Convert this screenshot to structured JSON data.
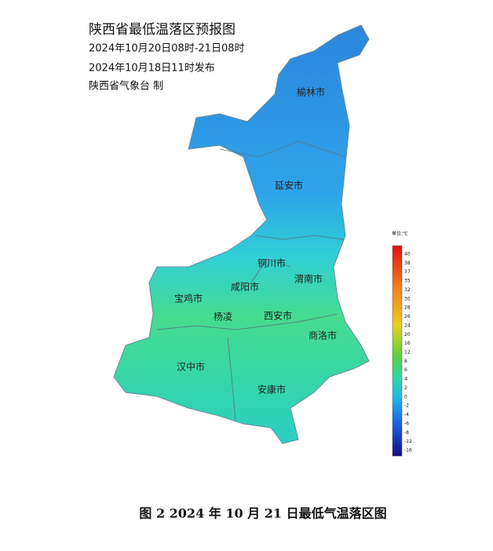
{
  "header": {
    "title": "陕西省最低温落区预报图",
    "valid": "2024年10月20日08时-21日08时",
    "issued": "2024年10月18日11时发布",
    "producer": "陕西省气象台 制"
  },
  "cities": [
    "榆林市",
    "延安市",
    "铜川市",
    "渭南市",
    "咸阳市",
    "宝鸡市",
    "杨凌",
    "西安市",
    "商洛市",
    "汉中市",
    "安康市"
  ],
  "legend": {
    "unit": "单位:℃",
    "ticks": [
      40,
      38,
      37,
      35,
      32,
      30,
      28,
      26,
      24,
      20,
      16,
      12,
      8,
      6,
      4,
      2,
      0,
      -2,
      -4,
      -6,
      -8,
      -12,
      -16
    ]
  },
  "caption": "图 2 2024 年 10 月 21 日最低气温落区图"
}
